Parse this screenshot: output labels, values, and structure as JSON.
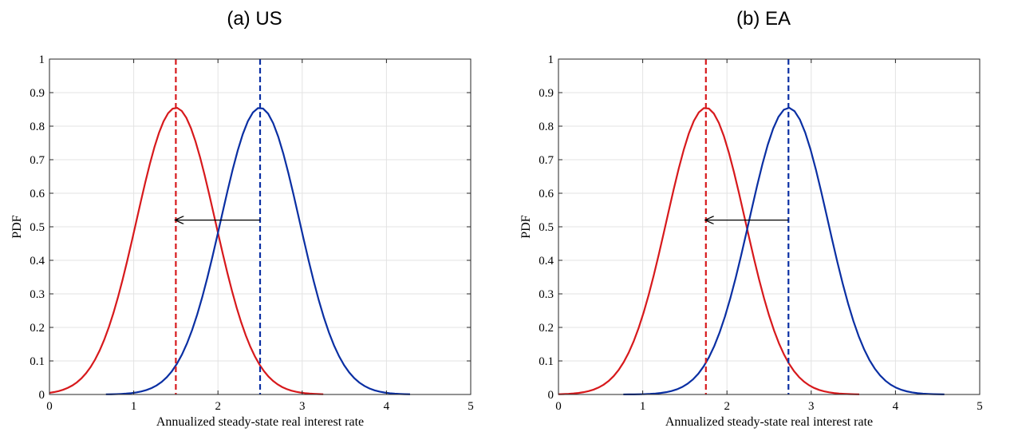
{
  "chart_data": [
    {
      "type": "line",
      "title": "(a) US",
      "xlabel": "Annualized steady-state real interest rate",
      "ylabel": "PDF",
      "xlim": [
        0,
        5
      ],
      "ylim": [
        0,
        1
      ],
      "xticks": [
        0,
        1,
        2,
        3,
        4,
        5
      ],
      "yticks": [
        0,
        0.1,
        0.2,
        0.3,
        0.4,
        0.5,
        0.6,
        0.7,
        0.8,
        0.9,
        1
      ],
      "grid": true,
      "legend": "none",
      "series": [
        {
          "color": "#d7191c",
          "mean": 1.5,
          "sd": 0.467,
          "x_range": [
            0,
            3.25
          ],
          "peak": 0.855
        },
        {
          "color": "#0a2fa3",
          "mean": 2.5,
          "sd": 0.467,
          "x_range": [
            0.67,
            4.28
          ],
          "peak": 0.855
        }
      ],
      "vlines": [
        {
          "x": 1.5,
          "color": "#d7191c",
          "style": "dashed"
        },
        {
          "x": 2.5,
          "color": "#0a2fa3",
          "style": "dashed"
        }
      ],
      "arrow": {
        "from": [
          2.5,
          0.52
        ],
        "to": [
          1.5,
          0.52
        ]
      }
    },
    {
      "type": "line",
      "title": "(b) EA",
      "xlabel": "Annualized steady-state real interest rate",
      "ylabel": "PDF",
      "xlim": [
        0,
        5
      ],
      "ylim": [
        0,
        1
      ],
      "xticks": [
        0,
        1,
        2,
        3,
        4,
        5
      ],
      "yticks": [
        0,
        0.1,
        0.2,
        0.3,
        0.4,
        0.5,
        0.6,
        0.7,
        0.8,
        0.9,
        1
      ],
      "grid": true,
      "legend": "none",
      "series": [
        {
          "color": "#d7191c",
          "mean": 1.75,
          "sd": 0.467,
          "x_range": [
            0,
            3.57
          ],
          "peak": 0.855
        },
        {
          "color": "#0a2fa3",
          "mean": 2.73,
          "sd": 0.467,
          "x_range": [
            0.77,
            4.58
          ],
          "peak": 0.855
        }
      ],
      "vlines": [
        {
          "x": 1.75,
          "color": "#d7191c",
          "style": "dashed"
        },
        {
          "x": 2.73,
          "color": "#0a2fa3",
          "style": "dashed"
        }
      ],
      "arrow": {
        "from": [
          2.73,
          0.52
        ],
        "to": [
          1.75,
          0.52
        ]
      }
    }
  ]
}
